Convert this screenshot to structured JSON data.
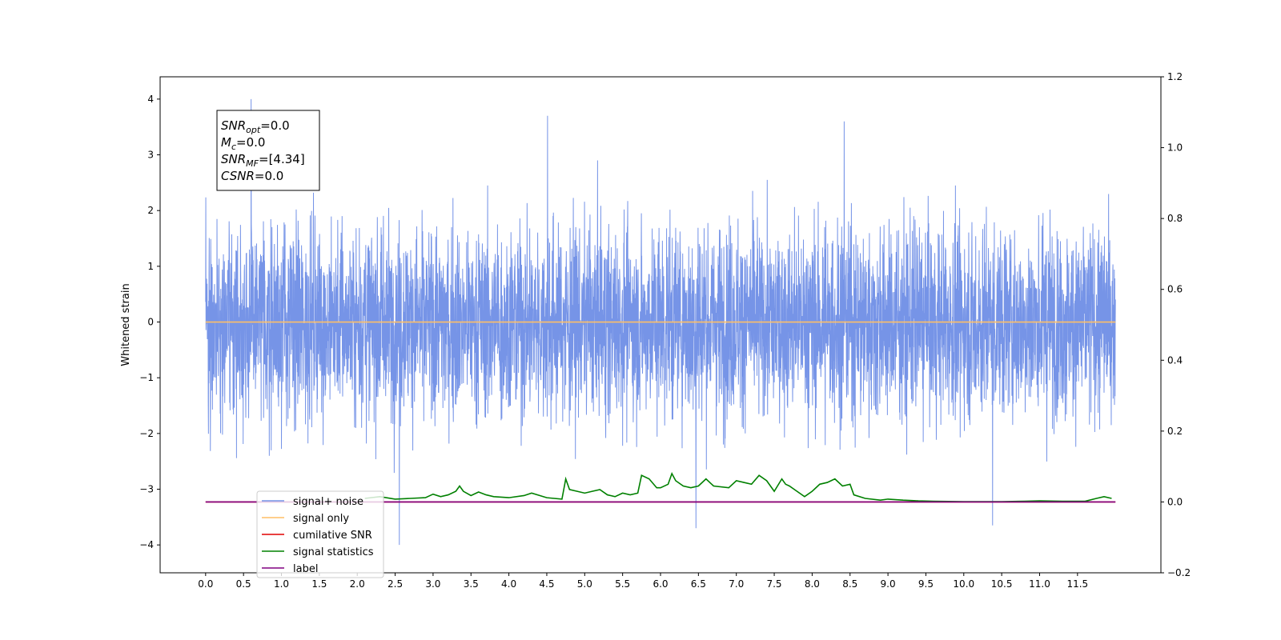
{
  "chart_data": {
    "type": "line",
    "title": "",
    "xlabel": "",
    "ylabel": "Whitened strain",
    "xlim": [
      -0.6,
      12.6
    ],
    "ylim": [
      -4.5,
      4.4
    ],
    "y2lim": [
      -0.2,
      1.2
    ],
    "xticks": [
      0.0,
      0.5,
      1.0,
      1.5,
      2.0,
      2.5,
      3.0,
      3.5,
      4.0,
      4.5,
      5.0,
      5.5,
      6.0,
      6.5,
      7.0,
      7.5,
      8.0,
      8.5,
      9.0,
      9.5,
      10.0,
      10.5,
      11.0,
      11.5
    ],
    "xtick_labels": [
      "0.0",
      "0.5",
      "1.0",
      "1.5",
      "2.0",
      "2.5",
      "3.0",
      "3.5",
      "4.0",
      "4.5",
      "5.0",
      "5.5",
      "6.0",
      "6.5",
      "7.0",
      "7.5",
      "8.0",
      "8.5",
      "9.0",
      "9.5",
      "10.0",
      "10.5",
      "11.0",
      "11.5"
    ],
    "yticks": [
      -4,
      -3,
      -2,
      -1,
      0,
      1,
      2,
      3,
      4
    ],
    "ytick_labels": [
      "−4",
      "−3",
      "−2",
      "−1",
      "0",
      "1",
      "2",
      "3",
      "4"
    ],
    "y2ticks": [
      -0.2,
      0.0,
      0.2,
      0.4,
      0.6,
      0.8,
      1.0,
      1.2
    ],
    "y2tick_labels": [
      "−0.2",
      "0.0",
      "0.2",
      "0.4",
      "0.6",
      "0.8",
      "1.0",
      "1.2"
    ],
    "grid": false,
    "legend_position": "lower-left",
    "annotation": {
      "lines": [
        {
          "sym": "SNR",
          "sub": "opt",
          "rest": "=0.0"
        },
        {
          "sym": "M",
          "sub": "c",
          "rest": "=0.0"
        },
        {
          "sym": "SNR",
          "sub": "MF",
          "rest": "=[4.34]"
        },
        {
          "sym": "CSNR",
          "sub": "",
          "rest": "=0.0"
        }
      ]
    },
    "series": [
      {
        "name": "signal+ noise",
        "axis": "left",
        "color": "#6f8ee6",
        "style": "noise",
        "x_range": [
          0.0,
          12.0
        ],
        "amplitude_typical": 1.0,
        "peaks": [
          4.0,
          -4.0,
          3.7,
          -3.7,
          3.6,
          -3.65
        ]
      },
      {
        "name": "signal only",
        "axis": "left",
        "color": "#ffbf66",
        "x": [
          0.0,
          12.0
        ],
        "y": [
          0.0,
          0.0
        ]
      },
      {
        "name": "cumilative SNR",
        "axis": "right",
        "color": "#e00000",
        "x": [
          0.0,
          12.0
        ],
        "y": [
          0.0,
          0.0
        ]
      },
      {
        "name": "signal statistics",
        "axis": "right",
        "color": "#008000",
        "x": [
          2.1,
          2.3,
          2.5,
          2.7,
          2.9,
          3.0,
          3.1,
          3.2,
          3.3,
          3.35,
          3.4,
          3.5,
          3.6,
          3.7,
          3.8,
          4.0,
          4.2,
          4.3,
          4.5,
          4.7,
          4.75,
          4.8,
          4.9,
          5.0,
          5.1,
          5.2,
          5.3,
          5.4,
          5.5,
          5.6,
          5.7,
          5.75,
          5.85,
          5.95,
          6.0,
          6.1,
          6.15,
          6.2,
          6.3,
          6.4,
          6.5,
          6.6,
          6.7,
          6.9,
          7.0,
          7.1,
          7.2,
          7.3,
          7.4,
          7.5,
          7.6,
          7.65,
          7.7,
          7.8,
          7.9,
          8.0,
          8.1,
          8.2,
          8.3,
          8.4,
          8.5,
          8.55,
          8.7,
          8.9,
          9.0,
          9.2,
          9.4,
          9.6,
          10.0,
          10.5,
          10.8,
          11.0,
          11.3,
          11.6,
          11.75,
          11.85,
          11.95
        ],
        "y": [
          0.01,
          0.015,
          0.008,
          0.01,
          0.012,
          0.022,
          0.015,
          0.02,
          0.03,
          0.045,
          0.03,
          0.018,
          0.028,
          0.02,
          0.015,
          0.012,
          0.018,
          0.025,
          0.012,
          0.008,
          0.065,
          0.035,
          0.03,
          0.025,
          0.03,
          0.035,
          0.02,
          0.015,
          0.025,
          0.02,
          0.025,
          0.075,
          0.065,
          0.04,
          0.04,
          0.05,
          0.08,
          0.06,
          0.045,
          0.04,
          0.045,
          0.065,
          0.045,
          0.04,
          0.06,
          0.055,
          0.05,
          0.075,
          0.06,
          0.03,
          0.065,
          0.05,
          0.045,
          0.03,
          0.015,
          0.03,
          0.05,
          0.055,
          0.065,
          0.045,
          0.05,
          0.02,
          0.01,
          0.005,
          0.008,
          0.005,
          0.003,
          0.002,
          0.001,
          0.001,
          0.002,
          0.003,
          0.002,
          0.002,
          0.01,
          0.015,
          0.01
        ]
      },
      {
        "name": "label",
        "axis": "right",
        "color": "#800080",
        "x": [
          0.0,
          12.0
        ],
        "y": [
          0.0,
          0.0
        ]
      }
    ]
  }
}
